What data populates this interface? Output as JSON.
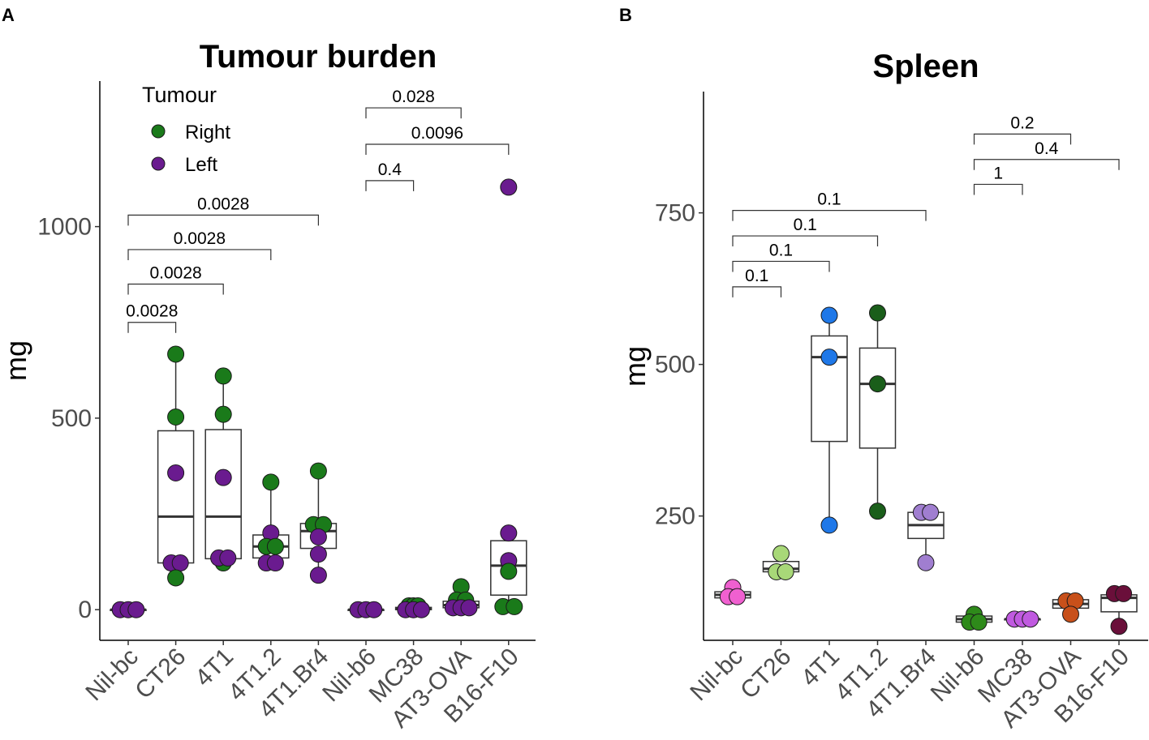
{
  "chart_data": [
    {
      "panel": "A",
      "type": "box",
      "title": "Tumour burden",
      "xlabel": "",
      "ylabel": "mg",
      "ylim": [
        -80,
        1380
      ],
      "yticks": [
        0,
        500,
        1000
      ],
      "categories": [
        "Nil-bc",
        "CT26",
        "4T1",
        "4T1.2",
        "4T1.Br4",
        "Nil-b6",
        "MC38",
        "AT3-OVA",
        "B16-F10"
      ],
      "legend": {
        "title": "Tumour",
        "position": "top-left",
        "items": [
          {
            "label": "Right",
            "color": "#1a7a1a"
          },
          {
            "label": "Left",
            "color": "#6a1b8f"
          }
        ]
      },
      "boxes": [
        {
          "category": "Nil-bc",
          "q1": 0,
          "median": 0,
          "q3": 0,
          "whisker_low": 0,
          "whisker_high": 0
        },
        {
          "category": "CT26",
          "q1": 122,
          "median": 243,
          "q3": 467,
          "whisker_low": 83,
          "whisker_high": 667
        },
        {
          "category": "4T1",
          "q1": 133,
          "median": 243,
          "q3": 470,
          "whisker_low": 122,
          "whisker_high": 610
        },
        {
          "category": "4T1.2",
          "q1": 135,
          "median": 165,
          "q3": 195,
          "whisker_low": 122,
          "whisker_high": 333
        },
        {
          "category": "4T1.Br4",
          "q1": 160,
          "median": 205,
          "q3": 225,
          "whisker_low": 90,
          "whisker_high": 362
        },
        {
          "category": "Nil-b6",
          "q1": 0,
          "median": 0,
          "q3": 0,
          "whisker_low": 0,
          "whisker_high": 0
        },
        {
          "category": "MC38",
          "q1": 0,
          "median": 2,
          "q3": 6,
          "whisker_low": 0,
          "whisker_high": 10
        },
        {
          "category": "AT3-OVA",
          "q1": 5,
          "median": 12,
          "q3": 22,
          "whisker_low": 0,
          "whisker_high": 60
        },
        {
          "category": "B16-F10",
          "q1": 38,
          "median": 115,
          "q3": 180,
          "whisker_low": 5,
          "whisker_high": 200
        }
      ],
      "points": [
        {
          "category": "Nil-bc",
          "value": 0,
          "side": "Left",
          "offset": -0.35,
          "color": "#6a1b8f"
        },
        {
          "category": "Nil-bc",
          "value": 0,
          "side": "Left",
          "offset": 0,
          "color": "#6a1b8f"
        },
        {
          "category": "Nil-bc",
          "value": 0,
          "side": "Left",
          "offset": 0.35,
          "color": "#6a1b8f"
        },
        {
          "category": "CT26",
          "value": 667,
          "side": "Right",
          "offset": 0,
          "color": "#1a7a1a"
        },
        {
          "category": "CT26",
          "value": 503,
          "side": "Right",
          "offset": 0,
          "color": "#1a7a1a"
        },
        {
          "category": "CT26",
          "value": 357,
          "side": "Left",
          "offset": 0,
          "color": "#6a1b8f"
        },
        {
          "category": "CT26",
          "value": 122,
          "side": "Left",
          "offset": -0.2,
          "color": "#6a1b8f"
        },
        {
          "category": "CT26",
          "value": 122,
          "side": "Left",
          "offset": 0.2,
          "color": "#6a1b8f"
        },
        {
          "category": "CT26",
          "value": 83,
          "side": "Right",
          "offset": 0,
          "color": "#1a7a1a"
        },
        {
          "category": "4T1",
          "value": 610,
          "side": "Right",
          "offset": 0,
          "color": "#1a7a1a"
        },
        {
          "category": "4T1",
          "value": 510,
          "side": "Right",
          "offset": 0,
          "color": "#1a7a1a"
        },
        {
          "category": "4T1",
          "value": 345,
          "side": "Left",
          "offset": 0,
          "color": "#6a1b8f"
        },
        {
          "category": "4T1",
          "value": 122,
          "side": "Right",
          "offset": 0,
          "color": "#1a7a1a"
        },
        {
          "category": "4T1",
          "value": 135,
          "side": "Left",
          "offset": -0.2,
          "color": "#6a1b8f"
        },
        {
          "category": "4T1",
          "value": 135,
          "side": "Left",
          "offset": 0.2,
          "color": "#6a1b8f"
        },
        {
          "category": "4T1.2",
          "value": 333,
          "side": "Right",
          "offset": 0,
          "color": "#1a7a1a"
        },
        {
          "category": "4T1.2",
          "value": 200,
          "side": "Left",
          "offset": 0,
          "color": "#6a1b8f"
        },
        {
          "category": "4T1.2",
          "value": 165,
          "side": "Right",
          "offset": -0.2,
          "color": "#1a7a1a"
        },
        {
          "category": "4T1.2",
          "value": 165,
          "side": "Right",
          "offset": 0.2,
          "color": "#1a7a1a"
        },
        {
          "category": "4T1.2",
          "value": 122,
          "side": "Left",
          "offset": -0.2,
          "color": "#6a1b8f"
        },
        {
          "category": "4T1.2",
          "value": 122,
          "side": "Left",
          "offset": 0.2,
          "color": "#6a1b8f"
        },
        {
          "category": "4T1.Br4",
          "value": 362,
          "side": "Right",
          "offset": 0,
          "color": "#1a7a1a"
        },
        {
          "category": "4T1.Br4",
          "value": 222,
          "side": "Right",
          "offset": -0.22,
          "color": "#1a7a1a"
        },
        {
          "category": "4T1.Br4",
          "value": 222,
          "side": "Right",
          "offset": 0.22,
          "color": "#1a7a1a"
        },
        {
          "category": "4T1.Br4",
          "value": 190,
          "side": "Left",
          "offset": 0,
          "color": "#6a1b8f"
        },
        {
          "category": "4T1.Br4",
          "value": 145,
          "side": "Left",
          "offset": 0,
          "color": "#6a1b8f"
        },
        {
          "category": "4T1.Br4",
          "value": 90,
          "side": "Left",
          "offset": 0,
          "color": "#6a1b8f"
        },
        {
          "category": "Nil-b6",
          "value": 0,
          "side": "Left",
          "offset": -0.35,
          "color": "#6a1b8f"
        },
        {
          "category": "Nil-b6",
          "value": 0,
          "side": "Left",
          "offset": 0,
          "color": "#6a1b8f"
        },
        {
          "category": "Nil-b6",
          "value": 0,
          "side": "Left",
          "offset": 0.35,
          "color": "#6a1b8f"
        },
        {
          "category": "MC38",
          "value": 10,
          "side": "Right",
          "offset": -0.2,
          "color": "#1a7a1a"
        },
        {
          "category": "MC38",
          "value": 10,
          "side": "Right",
          "offset": 0,
          "color": "#1a7a1a"
        },
        {
          "category": "MC38",
          "value": 10,
          "side": "Right",
          "offset": 0.2,
          "color": "#1a7a1a"
        },
        {
          "category": "MC38",
          "value": 0,
          "side": "Left",
          "offset": -0.35,
          "color": "#6a1b8f"
        },
        {
          "category": "MC38",
          "value": 0,
          "side": "Left",
          "offset": 0,
          "color": "#6a1b8f"
        },
        {
          "category": "MC38",
          "value": 0,
          "side": "Left",
          "offset": 0.35,
          "color": "#6a1b8f"
        },
        {
          "category": "AT3-OVA",
          "value": 60,
          "side": "Right",
          "offset": 0,
          "color": "#1a7a1a"
        },
        {
          "category": "AT3-OVA",
          "value": 25,
          "side": "Right",
          "offset": -0.2,
          "color": "#1a7a1a"
        },
        {
          "category": "AT3-OVA",
          "value": 25,
          "side": "Right",
          "offset": 0.2,
          "color": "#1a7a1a"
        },
        {
          "category": "AT3-OVA",
          "value": 5,
          "side": "Left",
          "offset": -0.35,
          "color": "#6a1b8f"
        },
        {
          "category": "AT3-OVA",
          "value": 5,
          "side": "Left",
          "offset": 0,
          "color": "#6a1b8f"
        },
        {
          "category": "AT3-OVA",
          "value": 5,
          "side": "Left",
          "offset": 0.35,
          "color": "#6a1b8f"
        },
        {
          "category": "B16-F10",
          "value": 1103,
          "side": "Left",
          "offset": 0,
          "color": "#6a1b8f"
        },
        {
          "category": "B16-F10",
          "value": 200,
          "side": "Left",
          "offset": 0,
          "color": "#6a1b8f"
        },
        {
          "category": "B16-F10",
          "value": 128,
          "side": "Left",
          "offset": 0,
          "color": "#6a1b8f"
        },
        {
          "category": "B16-F10",
          "value": 100,
          "side": "Right",
          "offset": 0,
          "color": "#1a7a1a"
        },
        {
          "category": "B16-F10",
          "value": 8,
          "side": "Right",
          "offset": -0.25,
          "color": "#1a7a1a"
        },
        {
          "category": "B16-F10",
          "value": 8,
          "side": "Right",
          "offset": 0.25,
          "color": "#1a7a1a"
        }
      ],
      "comparisons": [
        {
          "from": "Nil-bc",
          "to": "CT26",
          "label": "0.0028",
          "y": 750
        },
        {
          "from": "Nil-bc",
          "to": "4T1",
          "label": "0.0028",
          "y": 850
        },
        {
          "from": "Nil-bc",
          "to": "4T1.2",
          "label": "0.0028",
          "y": 940
        },
        {
          "from": "Nil-bc",
          "to": "4T1.Br4",
          "label": "0.0028",
          "y": 1030
        },
        {
          "from": "Nil-b6",
          "to": "MC38",
          "label": "0.4",
          "y": 1120
        },
        {
          "from": "Nil-b6",
          "to": "B16-F10",
          "label": "0.0096",
          "y": 1215
        },
        {
          "from": "Nil-b6",
          "to": "AT3-OVA",
          "label": "0.028",
          "y": 1310
        }
      ]
    },
    {
      "panel": "B",
      "type": "box",
      "title": "Spleen",
      "xlabel": "",
      "ylabel": "mg",
      "ylim": [
        45,
        950
      ],
      "yticks": [
        250,
        500,
        750
      ],
      "categories": [
        "Nil-bc",
        "CT26",
        "4T1",
        "4T1.2",
        "4T1.Br4",
        "Nil-b6",
        "MC38",
        "AT3-OVA",
        "B16-F10"
      ],
      "boxes": [
        {
          "category": "Nil-bc",
          "q1": 115,
          "median": 120,
          "q3": 125,
          "whisker_low": 115,
          "whisker_high": 132,
          "color": "#f060d0"
        },
        {
          "category": "CT26",
          "q1": 158,
          "median": 163,
          "q3": 175,
          "whisker_low": 158,
          "whisker_high": 188,
          "color": "#a8d878"
        },
        {
          "category": "4T1",
          "q1": 373,
          "median": 512,
          "q3": 547,
          "whisker_low": 235,
          "whisker_high": 581,
          "color": "#1f78e8"
        },
        {
          "category": "4T1.2",
          "q1": 362,
          "median": 468,
          "q3": 527,
          "whisker_low": 258,
          "whisker_high": 585,
          "color": "#1a5e1a"
        },
        {
          "category": "4T1.Br4",
          "q1": 213,
          "median": 235,
          "q3": 256,
          "whisker_low": 173,
          "whisker_high": 256,
          "color": "#a07ed0"
        },
        {
          "category": "Nil-b6",
          "q1": 75,
          "median": 80,
          "q3": 85,
          "whisker_low": 75,
          "whisker_high": 88,
          "color": "#2e8a1a"
        },
        {
          "category": "MC38",
          "q1": 80,
          "median": 80,
          "q3": 80,
          "whisker_low": 80,
          "whisker_high": 80,
          "color": "#c05ae0"
        },
        {
          "category": "AT3-OVA",
          "q1": 98,
          "median": 105,
          "q3": 112,
          "whisker_low": 85,
          "whisker_high": 112,
          "color": "#c8501a"
        },
        {
          "category": "B16-F10",
          "q1": 92,
          "median": 115,
          "q3": 120,
          "whisker_low": 68,
          "whisker_high": 120,
          "color": "#6a0f3a"
        }
      ],
      "points": [
        {
          "category": "Nil-bc",
          "value": 132,
          "offset": 0,
          "color": "#f060d0"
        },
        {
          "category": "Nil-bc",
          "value": 117,
          "offset": -0.2,
          "color": "#f060d0"
        },
        {
          "category": "Nil-bc",
          "value": 117,
          "offset": 0.2,
          "color": "#f060d0"
        },
        {
          "category": "CT26",
          "value": 188,
          "offset": 0,
          "color": "#a8d878"
        },
        {
          "category": "CT26",
          "value": 158,
          "offset": -0.2,
          "color": "#a8d878"
        },
        {
          "category": "CT26",
          "value": 158,
          "offset": 0.2,
          "color": "#a8d878"
        },
        {
          "category": "4T1",
          "value": 581,
          "offset": 0,
          "color": "#1f78e8"
        },
        {
          "category": "4T1",
          "value": 512,
          "offset": 0,
          "color": "#1f78e8"
        },
        {
          "category": "4T1",
          "value": 235,
          "offset": 0,
          "color": "#1f78e8"
        },
        {
          "category": "4T1.2",
          "value": 585,
          "offset": 0,
          "color": "#1a5e1a"
        },
        {
          "category": "4T1.2",
          "value": 468,
          "offset": 0,
          "color": "#1a5e1a"
        },
        {
          "category": "4T1.2",
          "value": 258,
          "offset": 0,
          "color": "#1a5e1a"
        },
        {
          "category": "4T1.Br4",
          "value": 256,
          "offset": -0.2,
          "color": "#a07ed0"
        },
        {
          "category": "4T1.Br4",
          "value": 256,
          "offset": 0.2,
          "color": "#a07ed0"
        },
        {
          "category": "4T1.Br4",
          "value": 173,
          "offset": 0,
          "color": "#a07ed0"
        },
        {
          "category": "Nil-b6",
          "value": 88,
          "offset": 0,
          "color": "#2e8a1a"
        },
        {
          "category": "Nil-b6",
          "value": 75,
          "offset": -0.2,
          "color": "#2e8a1a"
        },
        {
          "category": "Nil-b6",
          "value": 75,
          "offset": 0.2,
          "color": "#2e8a1a"
        },
        {
          "category": "MC38",
          "value": 80,
          "offset": -0.35,
          "color": "#c05ae0"
        },
        {
          "category": "MC38",
          "value": 80,
          "offset": 0,
          "color": "#c05ae0"
        },
        {
          "category": "MC38",
          "value": 80,
          "offset": 0.35,
          "color": "#c05ae0"
        },
        {
          "category": "AT3-OVA",
          "value": 110,
          "offset": -0.2,
          "color": "#c8501a"
        },
        {
          "category": "AT3-OVA",
          "value": 110,
          "offset": 0.2,
          "color": "#c8501a"
        },
        {
          "category": "AT3-OVA",
          "value": 88,
          "offset": 0,
          "color": "#c8501a"
        },
        {
          "category": "B16-F10",
          "value": 122,
          "offset": -0.2,
          "color": "#6a0f3a"
        },
        {
          "category": "B16-F10",
          "value": 122,
          "offset": 0.2,
          "color": "#6a0f3a"
        },
        {
          "category": "B16-F10",
          "value": 68,
          "offset": 0,
          "color": "#6a0f3a"
        }
      ],
      "comparisons": [
        {
          "from": "Nil-bc",
          "to": "CT26",
          "label": "0.1",
          "y": 628
        },
        {
          "from": "Nil-bc",
          "to": "4T1",
          "label": "0.1",
          "y": 670
        },
        {
          "from": "Nil-bc",
          "to": "4T1.2",
          "label": "0.1",
          "y": 712
        },
        {
          "from": "Nil-bc",
          "to": "4T1.Br4",
          "label": "0.1",
          "y": 754
        },
        {
          "from": "Nil-b6",
          "to": "MC38",
          "label": "1",
          "y": 797
        },
        {
          "from": "Nil-b6",
          "to": "B16-F10",
          "label": "0.4",
          "y": 838
        },
        {
          "from": "Nil-b6",
          "to": "AT3-OVA",
          "label": "0.2",
          "y": 880
        }
      ]
    }
  ]
}
